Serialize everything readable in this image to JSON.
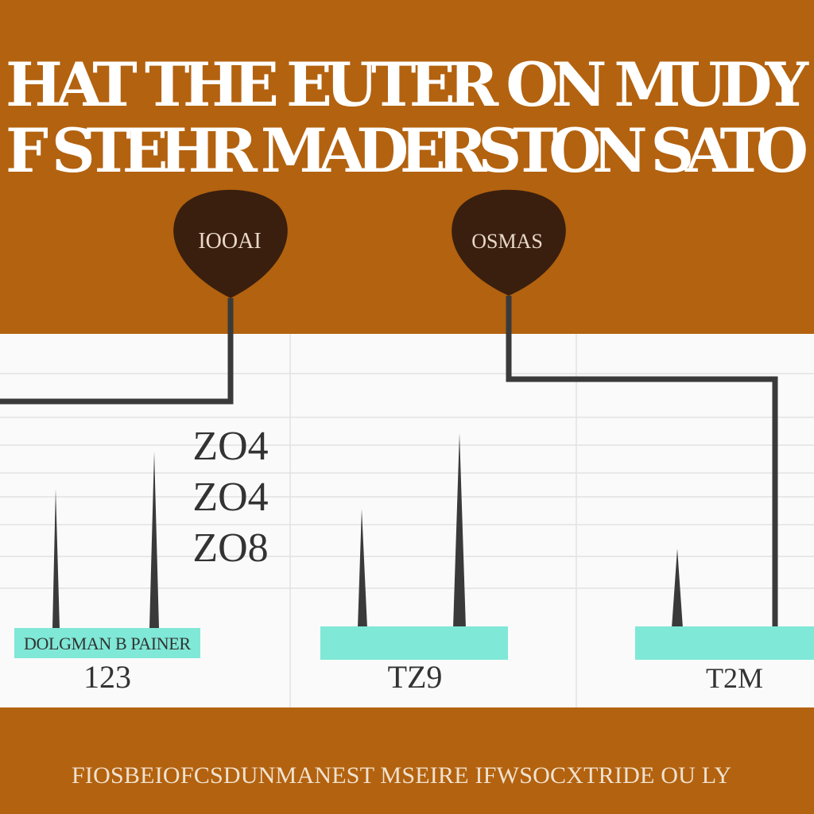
{
  "header": {
    "title_lines": [
      "HAT THE EUTER ON MUDY",
      "F STEHR MADERSTON SATO"
    ]
  },
  "markers": [
    {
      "label": "IOOAI"
    },
    {
      "label": "OSMAS"
    }
  ],
  "annotations": [
    "ZO4",
    "ZO4",
    "ZO8"
  ],
  "panels": [
    {
      "tag": "DOLGMAN B PAINER",
      "label": "123"
    },
    {
      "label": "TZ9"
    },
    {
      "label": "T2M"
    }
  ],
  "footer": {
    "text": "FIOSBEIOFCSDUNMANEST MSEIRE IFWSOCXTRIDE OU LY"
  }
}
